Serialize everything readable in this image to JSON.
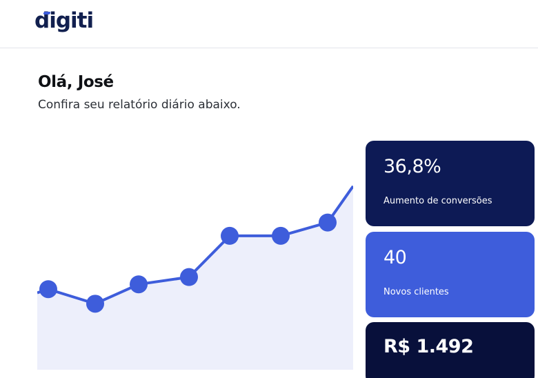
{
  "header": {
    "logo_text": "digiti"
  },
  "greeting": {
    "title": "Olá, José",
    "subtitle": "Confira seu relatório diário abaixo."
  },
  "colors": {
    "navy": "#0d1a55",
    "accent": "#3e5ddb",
    "dark": "#08103b",
    "chart_fill": "#edeffb"
  },
  "chart_data": {
    "type": "line",
    "x": [
      1,
      2,
      3,
      4,
      5,
      6,
      7,
      8
    ],
    "series": [
      {
        "values": [
          38,
          26,
          42,
          48,
          82,
          82,
          93,
          123
        ]
      }
    ],
    "ylim": [
      0,
      140
    ],
    "grid": false,
    "title": "",
    "xlabel": "",
    "ylabel": ""
  },
  "stats": [
    {
      "value": "36,8%",
      "label": "Aumento de conversões"
    },
    {
      "value": "40",
      "label": "Novos clientes"
    },
    {
      "value": "R$ 1.492",
      "label": ""
    }
  ]
}
